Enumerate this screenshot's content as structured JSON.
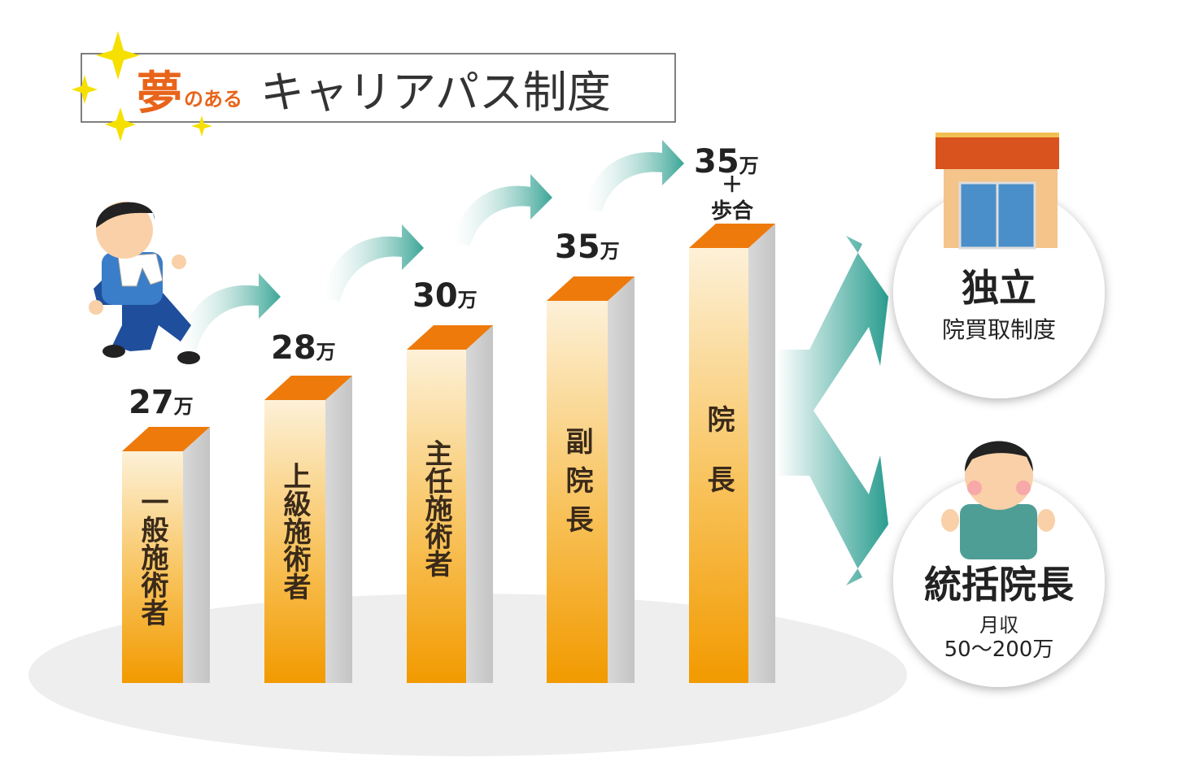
{
  "title": {
    "emphasis": "夢",
    "particle": "のある",
    "main": "キャリアパス制度"
  },
  "steps": [
    {
      "position": "一般施術者",
      "salary": "27",
      "unit": "万"
    },
    {
      "position": "上級施術者",
      "salary": "28",
      "unit": "万"
    },
    {
      "position": "主任施術者",
      "salary": "30",
      "unit": "万"
    },
    {
      "position": "副院長",
      "salary": "35",
      "unit": "万"
    },
    {
      "position": "院長",
      "salary": "35",
      "unit": "万",
      "plus": "＋",
      "extra": "歩合"
    }
  ],
  "outcomes": [
    {
      "title": "独立",
      "detail": "院買取制度"
    },
    {
      "title": "統括院長",
      "detail": "月収",
      "amount": "50〜200万"
    }
  ]
}
